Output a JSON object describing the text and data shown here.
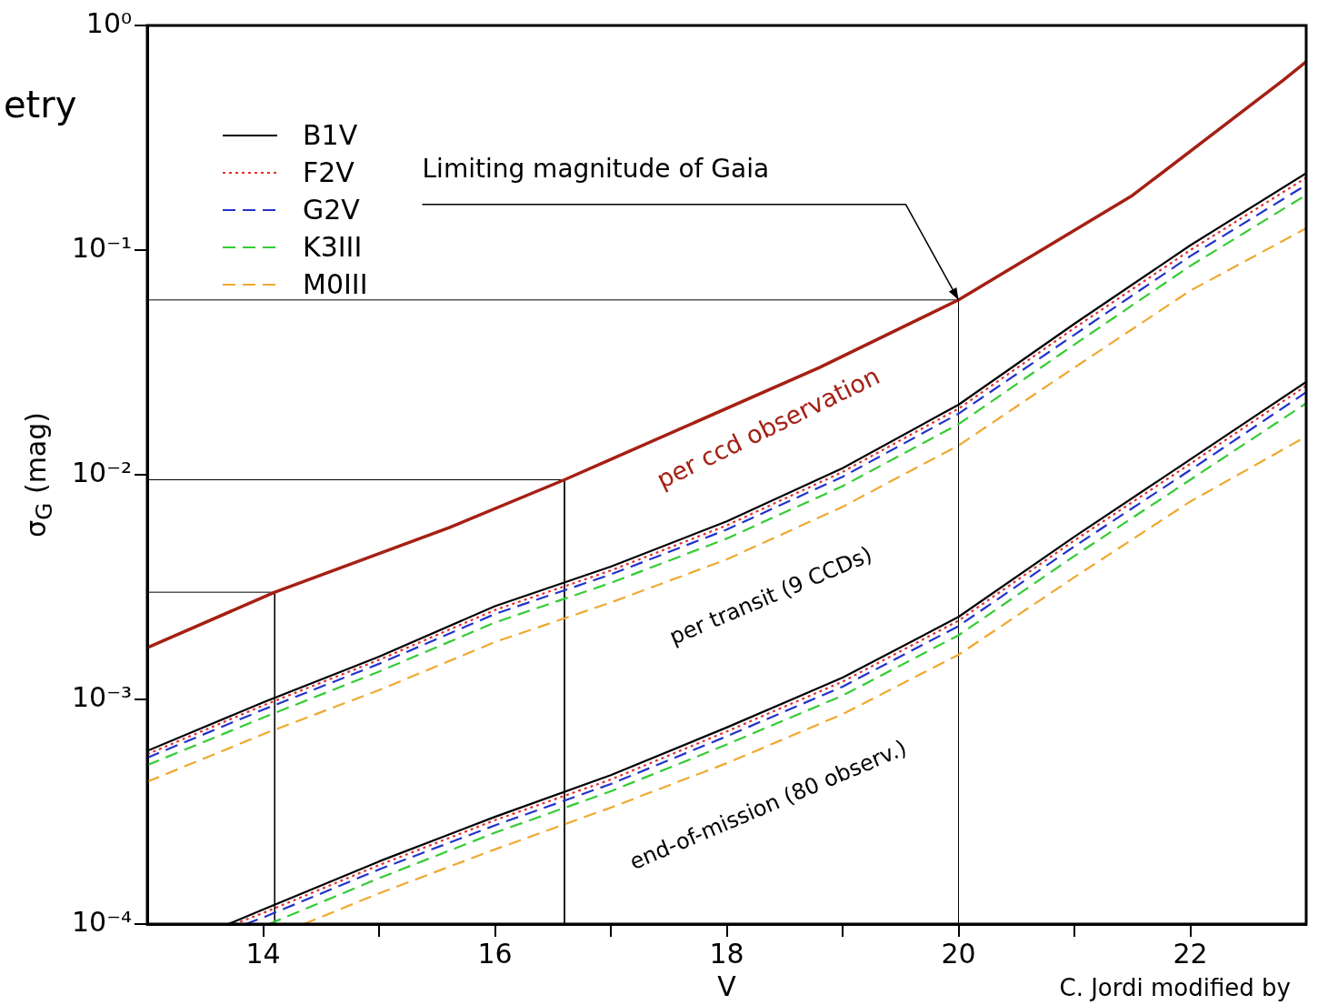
{
  "chart_data": {
    "type": "line",
    "xlabel": "V",
    "ylabel": "σ$_{G}$ (mag)",
    "log": "y",
    "grid": false,
    "legend": "top left",
    "marker": "none",
    "xlim": [
      13,
      23
    ],
    "xticks": [
      14,
      {
        "value": 15,
        "label": null
      },
      16,
      {
        "value": 17,
        "label": null
      },
      18,
      {
        "value": 19,
        "label": null
      },
      20,
      {
        "value": 21,
        "label": null
      },
      22
    ],
    "ylim": [
      0.0001,
      1
    ],
    "yticks": [
      {
        "value": 0.0001,
        "label": "10⁻⁴"
      },
      {
        "value": 0.001,
        "label": "10⁻³"
      },
      {
        "value": 0.01,
        "label": "10⁻²"
      },
      {
        "value": 0.1,
        "label": "10⁻¹"
      },
      {
        "value": 1,
        "label": "10⁰"
      }
    ],
    "series": [
      {
        "color": "#a52014",
        "line_style": "solid",
        "x": [
          13,
          14.1,
          15.6,
          16.6,
          18.8,
          20,
          21.5,
          22.8,
          23
        ],
        "values": [
          0.0017,
          0.003,
          0.0058,
          0.0095,
          0.03,
          0.06,
          0.175,
          0.57,
          0.69
        ]
      },
      {
        "name": "B1V",
        "color": "#000000",
        "line_style": "solid",
        "x": [
          13,
          14,
          15,
          16,
          17,
          18,
          19,
          20,
          21,
          22,
          23
        ],
        "values": [
          0.00059,
          0.00097,
          0.00155,
          0.0026,
          0.0039,
          0.0062,
          0.0107,
          0.0205,
          0.047,
          0.105,
          0.22
        ]
      },
      {
        "name": "F2V",
        "color": "#e03030",
        "line_style": "dotted",
        "x": [
          13,
          14,
          15,
          16,
          17,
          18,
          19,
          20,
          21,
          22,
          23
        ],
        "values": [
          0.00057,
          0.00094,
          0.0015,
          0.0025,
          0.00375,
          0.00595,
          0.0103,
          0.0197,
          0.045,
          0.1,
          0.21
        ]
      },
      {
        "name": "G2V",
        "color": "#2233cc",
        "line_style": "dashed",
        "x": [
          13,
          14,
          15,
          16,
          17,
          18,
          19,
          20,
          21,
          22,
          23
        ],
        "values": [
          0.00055,
          0.0009,
          0.00144,
          0.0024,
          0.0036,
          0.0057,
          0.0098,
          0.0187,
          0.042,
          0.094,
          0.195
        ]
      },
      {
        "name": "K3III",
        "color": "#33cc33",
        "line_style": "dashed",
        "x": [
          13,
          14,
          15,
          16,
          17,
          18,
          19,
          20,
          21,
          22,
          23
        ],
        "values": [
          0.00051,
          0.00083,
          0.00133,
          0.0022,
          0.0033,
          0.0052,
          0.0089,
          0.0168,
          0.038,
          0.085,
          0.176
        ]
      },
      {
        "name": "M0III",
        "color": "#f0a830",
        "line_style": "dashed",
        "x": [
          13,
          14,
          15,
          16,
          17,
          18,
          19,
          20,
          21,
          22,
          23
        ],
        "values": [
          0.00043,
          0.0007,
          0.0011,
          0.0018,
          0.0027,
          0.0042,
          0.0072,
          0.0135,
          0.03,
          0.066,
          0.125
        ]
      },
      {
        "color": "#000000",
        "line_style": "solid",
        "x": [
          13.7,
          14,
          15,
          16,
          17,
          18,
          19,
          20,
          21,
          22,
          23
        ],
        "values": [
          0.0001,
          0.000116,
          0.00019,
          0.0003,
          0.00046,
          0.00075,
          0.00125,
          0.00233,
          0.0053,
          0.0117,
          0.0259
        ]
      },
      {
        "color": "#e03030",
        "line_style": "dotted",
        "x": [
          13.75,
          14,
          15,
          16,
          17,
          18,
          19,
          20,
          21,
          22,
          23
        ],
        "values": [
          0.0001,
          0.000112,
          0.000183,
          0.00029,
          0.00044,
          0.00072,
          0.0012,
          0.00224,
          0.0051,
          0.0112,
          0.0249
        ]
      },
      {
        "color": "#2233cc",
        "line_style": "dashed",
        "x": [
          13.85,
          14,
          15,
          16,
          17,
          18,
          19,
          20,
          21,
          22,
          23
        ],
        "values": [
          0.0001,
          0.000107,
          0.000175,
          0.000275,
          0.00042,
          0.000685,
          0.00114,
          0.00212,
          0.0048,
          0.0105,
          0.0233
        ]
      },
      {
        "color": "#33cc33",
        "line_style": "dashed",
        "x": [
          14.05,
          15,
          16,
          17,
          18,
          19,
          20,
          21,
          22,
          23
        ],
        "values": [
          0.0001,
          0.00016,
          0.000255,
          0.00039,
          0.00063,
          0.00104,
          0.00193,
          0.00435,
          0.0095,
          0.0208
        ]
      },
      {
        "color": "#f0a830",
        "line_style": "dashed",
        "x": [
          14.35,
          15,
          16,
          17,
          18,
          19,
          20,
          21,
          22,
          23
        ],
        "values": [
          0.0001,
          0.000137,
          0.000215,
          0.00033,
          0.00052,
          0.00086,
          0.00158,
          0.0035,
          0.0076,
          0.0148
        ]
      },
      {
        "color": "#000000",
        "line_style": "solid",
        "x": [
          13,
          14.1,
          14.1
        ],
        "values": [
          0.003,
          0.003,
          0.0001
        ]
      },
      {
        "color": "#000000",
        "line_style": "solid",
        "x": [
          13,
          16.6,
          16.6
        ],
        "values": [
          0.0095,
          0.0095,
          0.0001
        ]
      },
      {
        "color": "#000000",
        "line_style": "solid",
        "x": [
          13,
          20,
          20
        ],
        "values": [
          0.06,
          0.06,
          0.0001
        ]
      }
    ],
    "annotations": [
      "etry",
      {
        "text": "Limiting magnitude of Gaia",
        "x": 20,
        "y": 0.06
      },
      "per ccd observation",
      "per transit (9 CCDs)",
      "end-of-mission (80 observ.)",
      "C. Jordi modified by"
    ]
  }
}
